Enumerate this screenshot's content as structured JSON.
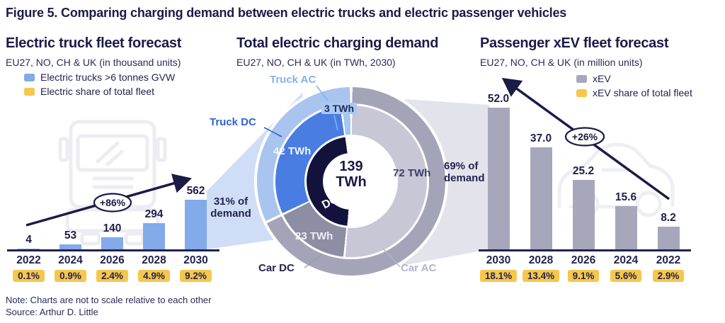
{
  "figure": {
    "title": "Figure 5. Comparing charging demand between electric trucks and electric passenger vehicles",
    "note": "Note: Charts are not to scale relative to each other",
    "source": "Source: Arthur D. Little"
  },
  "colors": {
    "navy_text": "#1b1b47",
    "truck_bar_blue": "#83aae9",
    "share_badge_yellow": "#f6c74d",
    "xev_bar_gray": "#a7a7bc",
    "beam_truck": "#cfdef6",
    "beam_car": "#e3e3ec"
  },
  "chart_data": [
    {
      "type": "bar",
      "title": "Electric truck fleet forecast",
      "subtitle": "EU27, NO, CH & UK (in thousand units)",
      "legend": [
        {
          "label": "Electric trucks >6 tonnes GVW",
          "color": "#83aae9"
        },
        {
          "label": "Electric share of total fleet",
          "color": "#f6c74d"
        }
      ],
      "categories": [
        "2022",
        "2024",
        "2026",
        "2028",
        "2030"
      ],
      "values": [
        4,
        53,
        140,
        294,
        562
      ],
      "value_labels": [
        "4",
        "53",
        "140",
        "294",
        "562"
      ],
      "share_badges": [
        "0.1%",
        "0.9%",
        "2.4%",
        "4.9%",
        "9.2%"
      ],
      "growth_label": "+86%",
      "bar_color": "#83aae9",
      "ylabel": "thousand units"
    },
    {
      "type": "pie",
      "title": "Total electric charging demand",
      "subtitle": "EU27, NO, CH & UK (in TWh, 2030)",
      "center_value": "139",
      "center_unit": "TWh",
      "slices": [
        {
          "name": "Car AC",
          "value": 72,
          "label": "72 TWh",
          "color": "#c7c7d6"
        },
        {
          "name": "Car DC",
          "value": 23,
          "label": "23 TWh",
          "color": "#8d8da4"
        },
        {
          "name": "Truck DC",
          "value": 42,
          "label": "42 TWh",
          "color": "#4a7de2"
        },
        {
          "name": "Truck AC",
          "value": 3,
          "label": "3 TWh",
          "color": "#a5c6f3"
        }
      ],
      "inner_arc_label": "DC",
      "dc_color": "#12123c",
      "outer_band": {
        "car_color": "#a4a4b9",
        "truck_color": "#a9c4ef"
      },
      "truck_share_label": "31% of demand",
      "car_share_label": "69% of demand"
    },
    {
      "type": "bar",
      "title": "Passenger xEV fleet forecast",
      "subtitle": "EU27, NO, CH & UK (in million units)",
      "legend": [
        {
          "label": "xEV",
          "color": "#a7a7bc"
        },
        {
          "label": "xEV share of total fleet",
          "color": "#f6c74d"
        }
      ],
      "categories": [
        "2030",
        "2028",
        "2026",
        "2024",
        "2022"
      ],
      "values": [
        52.0,
        37.0,
        25.2,
        15.6,
        8.2
      ],
      "value_labels": [
        "52.0",
        "37.0",
        "25.2",
        "15.6",
        "8.2"
      ],
      "share_badges": [
        "18.1%",
        "13.4%",
        "9.1%",
        "5.6%",
        "2.9%"
      ],
      "growth_label": "+26%",
      "bar_color": "#a7a7bc",
      "ylabel": "million units"
    }
  ]
}
